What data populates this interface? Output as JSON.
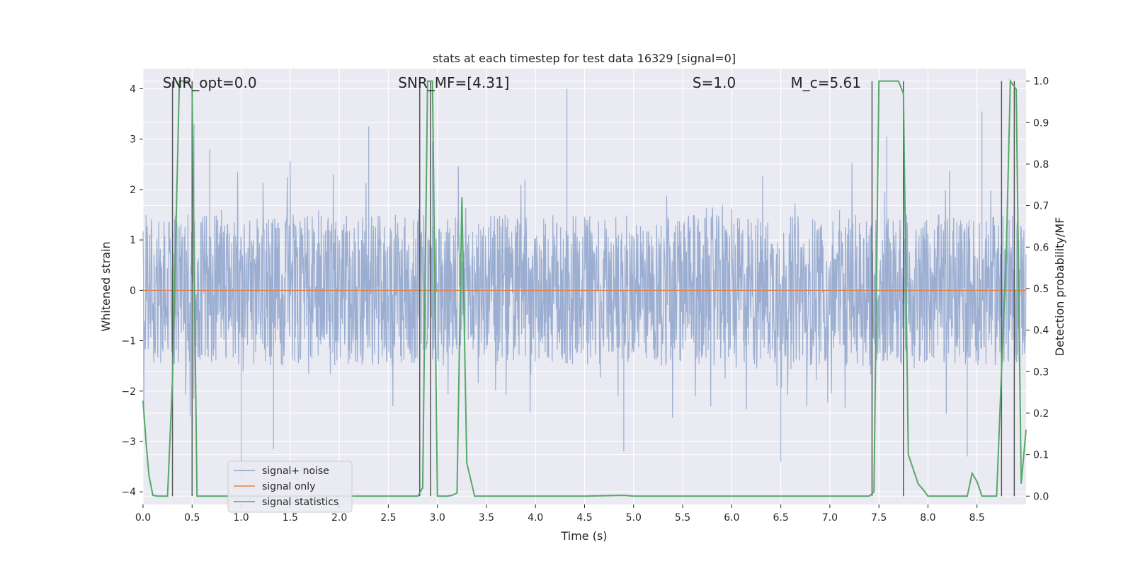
{
  "chart_data": {
    "type": "line",
    "title": "stats at each timestep for test data 16329 [signal=0]",
    "xlabel": "Time (s)",
    "ylabel": "Whitened strain",
    "y2label": "Detection probability/MF",
    "xlim": [
      0,
      9
    ],
    "ylim": [
      -4.25,
      4.4
    ],
    "y2lim": [
      -0.02,
      1.03
    ],
    "x_ticks": [
      0.0,
      0.5,
      1.0,
      1.5,
      2.0,
      2.5,
      3.0,
      3.5,
      4.0,
      4.5,
      5.0,
      5.5,
      6.0,
      6.5,
      7.0,
      7.5,
      8.0,
      8.5
    ],
    "x_tick_labels": [
      "0.0",
      "0.5",
      "1.0",
      "1.5",
      "2.0",
      "2.5",
      "3.0",
      "3.5",
      "4.0",
      "4.5",
      "5.0",
      "5.5",
      "6.0",
      "6.5",
      "7.0",
      "7.5",
      "8.0",
      "8.5"
    ],
    "y_ticks": [
      -4,
      -3,
      -2,
      -1,
      0,
      1,
      2,
      3,
      4
    ],
    "y_tick_labels": [
      "−4",
      "−3",
      "−2",
      "−1",
      "0",
      "1",
      "2",
      "3",
      "4"
    ],
    "y2_ticks": [
      0.0,
      0.1,
      0.2,
      0.3,
      0.4,
      0.5,
      0.6,
      0.7,
      0.8,
      0.9,
      1.0
    ],
    "y2_tick_labels": [
      "0.0",
      "0.1",
      "0.2",
      "0.3",
      "0.4",
      "0.5",
      "0.6",
      "0.7",
      "0.8",
      "0.9",
      "1.0"
    ],
    "grid": true,
    "legend": {
      "location": "lower-left",
      "entries": [
        {
          "label": "signal+ noise",
          "color": "#4c72b0"
        },
        {
          "label": "signal only",
          "color": "#dd8452"
        },
        {
          "label": "signal statistics",
          "color": "#55a868"
        }
      ]
    },
    "annotations": [
      {
        "text": "SNR_opt=0.0",
        "x": 0.2
      },
      {
        "text": "SNR_MF=[4.31]",
        "x": 2.6
      },
      {
        "text": "S=1.0",
        "x": 5.6
      },
      {
        "text": "M_c=5.61",
        "x": 6.6
      }
    ],
    "series": [
      {
        "name": "signal+ noise",
        "color": "#4c72b0",
        "description_stats": {
          "band_low": -1.5,
          "band_high": 1.5,
          "peak_max": 4.0,
          "peak_min": -3.8
        },
        "peaks": [
          {
            "x": 0.52,
            "y": 3.3
          },
          {
            "x": 0.68,
            "y": 2.8
          },
          {
            "x": 2.3,
            "y": 3.25
          },
          {
            "x": 2.95,
            "y": 2.95
          },
          {
            "x": 4.32,
            "y": 4.0
          },
          {
            "x": 7.58,
            "y": 3.05
          },
          {
            "x": 8.55,
            "y": 3.55
          },
          {
            "x": 1.0,
            "y": -3.8
          },
          {
            "x": 1.33,
            "y": -3.15
          },
          {
            "x": 4.9,
            "y": -3.2
          },
          {
            "x": 6.5,
            "y": -3.4
          },
          {
            "x": 8.4,
            "y": -3.3
          }
        ]
      },
      {
        "name": "signal only",
        "color": "#dd8452",
        "x": [
          0,
          9
        ],
        "y": [
          0,
          0
        ]
      },
      {
        "name": "signal statistics",
        "color": "#55a868",
        "axis": "right",
        "x": [
          0.0,
          0.03,
          0.06,
          0.1,
          0.15,
          0.25,
          0.3,
          0.37,
          0.45,
          0.5,
          0.55,
          0.6,
          2.8,
          2.85,
          2.9,
          2.95,
          3.0,
          3.1,
          3.15,
          3.2,
          3.25,
          3.3,
          3.38,
          3.5,
          4.5,
          4.9,
          5.0,
          7.4,
          7.45,
          7.5,
          7.7,
          7.75,
          7.8,
          7.9,
          7.97,
          8.0,
          8.1,
          8.4,
          8.45,
          8.5,
          8.55,
          8.6,
          8.7,
          8.8,
          8.84,
          8.9,
          8.95,
          9.0
        ],
        "y": [
          0.23,
          0.13,
          0.05,
          0.002,
          0.0,
          0.0,
          0.28,
          1.0,
          1.0,
          0.98,
          0.0,
          0.0,
          0.0,
          0.02,
          1.0,
          1.0,
          0.0,
          0.0,
          0.002,
          0.008,
          0.72,
          0.08,
          0.0,
          0.0,
          0.0,
          0.002,
          0.0,
          0.0,
          0.01,
          1.0,
          1.0,
          0.97,
          0.1,
          0.03,
          0.01,
          0.0,
          0.0,
          0.0,
          0.055,
          0.035,
          0.0,
          0.0,
          0.0,
          0.6,
          1.0,
          0.98,
          0.03,
          0.16
        ]
      }
    ],
    "vlines": [
      0.3,
      0.5,
      2.82,
      2.93,
      7.43,
      7.75,
      8.75,
      8.88
    ]
  }
}
